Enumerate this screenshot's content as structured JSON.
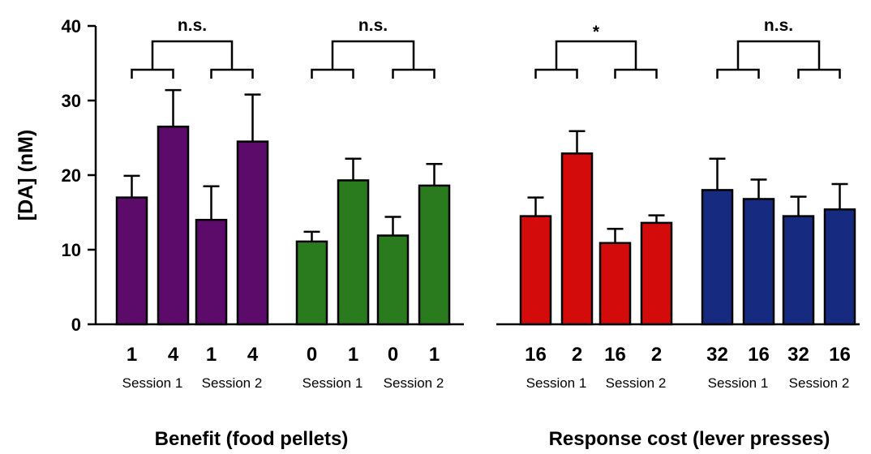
{
  "chart_data": {
    "type": "bar",
    "ylabel": "[DA] (nM)",
    "ylim": [
      0,
      40
    ],
    "yticks": [
      0,
      10,
      20,
      30,
      40
    ],
    "grid": false,
    "panels": [
      {
        "xlabel": "Benefit (food pellets)",
        "groups": [
          {
            "session": "Session 1",
            "significance": "n.s.",
            "bars": [
              {
                "category": "1",
                "value": 17.0,
                "error": 2.9,
                "color": "#5c0b6b"
              },
              {
                "category": "4",
                "value": 26.5,
                "error": 4.9,
                "color": "#5c0b6b"
              }
            ]
          },
          {
            "session": "Session 2",
            "significance": "n.s.",
            "bars": [
              {
                "category": "1",
                "value": 14.0,
                "error": 4.5,
                "color": "#5c0b6b"
              },
              {
                "category": "4",
                "value": 24.5,
                "error": 6.3,
                "color": "#5c0b6b"
              }
            ]
          },
          {
            "session": "Session 1",
            "significance": "n.s.",
            "bars": [
              {
                "category": "0",
                "value": 11.1,
                "error": 1.3,
                "color": "#2a7a1e"
              },
              {
                "category": "1",
                "value": 19.3,
                "error": 2.9,
                "color": "#2a7a1e"
              }
            ]
          },
          {
            "session": "Session 2",
            "significance": "n.s.",
            "bars": [
              {
                "category": "0",
                "value": 11.9,
                "error": 2.5,
                "color": "#2a7a1e"
              },
              {
                "category": "1",
                "value": 18.6,
                "error": 2.9,
                "color": "#2a7a1e"
              }
            ]
          }
        ],
        "brackets": [
          {
            "label": "n.s.",
            "groups": [
              0,
              1
            ]
          },
          {
            "label": "n.s.",
            "groups": [
              2,
              3
            ]
          }
        ]
      },
      {
        "xlabel": "Response cost (lever presses)",
        "groups": [
          {
            "session": "Session 1",
            "bars": [
              {
                "category": "16",
                "value": 14.5,
                "error": 2.5,
                "color": "#d40b0b"
              },
              {
                "category": "2",
                "value": 22.9,
                "error": 3.0,
                "color": "#d40b0b"
              }
            ]
          },
          {
            "session": "Session 2",
            "bars": [
              {
                "category": "16",
                "value": 10.9,
                "error": 1.9,
                "color": "#d40b0b"
              },
              {
                "category": "2",
                "value": 13.6,
                "error": 1.0,
                "color": "#d40b0b"
              }
            ]
          },
          {
            "session": "Session 1",
            "bars": [
              {
                "category": "32",
                "value": 18.0,
                "error": 4.2,
                "color": "#162a80"
              },
              {
                "category": "16",
                "value": 16.8,
                "error": 2.6,
                "color": "#162a80"
              }
            ]
          },
          {
            "session": "Session 2",
            "bars": [
              {
                "category": "32",
                "value": 14.5,
                "error": 2.6,
                "color": "#162a80"
              },
              {
                "category": "16",
                "value": 15.4,
                "error": 3.4,
                "color": "#162a80"
              }
            ]
          }
        ],
        "brackets": [
          {
            "label": "*",
            "groups": [
              0,
              1
            ]
          },
          {
            "label": "n.s.",
            "groups": [
              2,
              3
            ]
          }
        ]
      }
    ]
  }
}
